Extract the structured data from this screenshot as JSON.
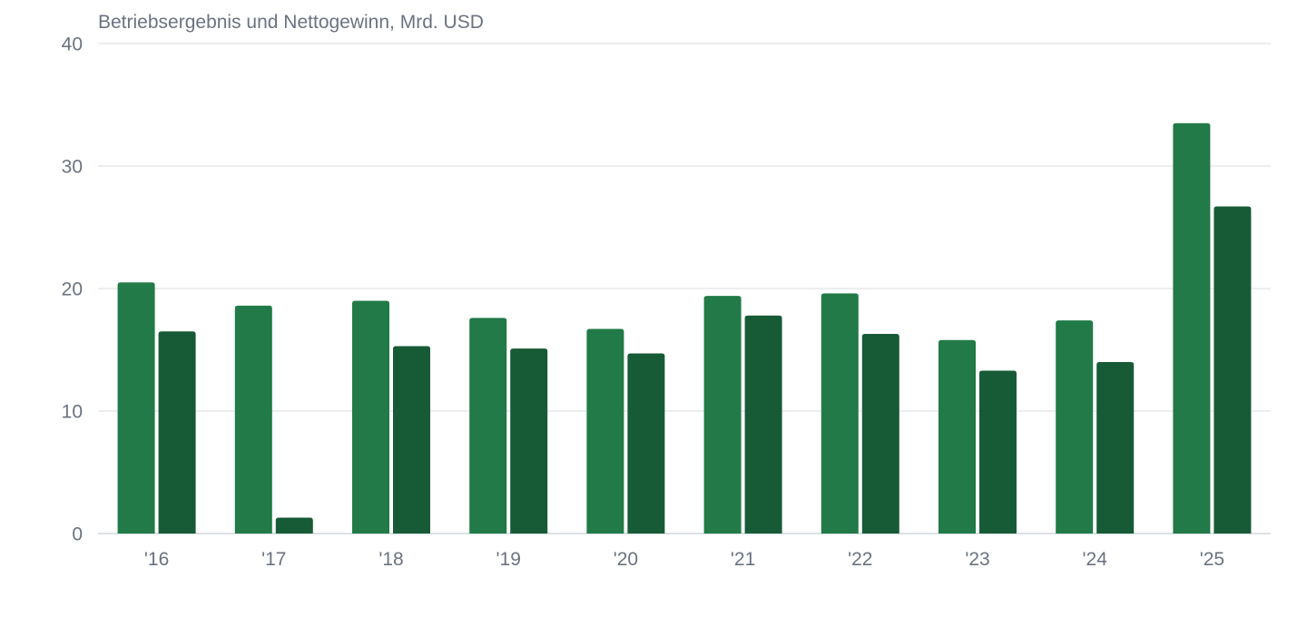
{
  "chart_data": {
    "type": "bar",
    "title": "Betriebsergebnis und Nettogewinn, Mrd. USD",
    "categories": [
      "'16",
      "'17",
      "'18",
      "'19",
      "'20",
      "'21",
      "'22",
      "'23",
      "'24",
      "'25"
    ],
    "series": [
      {
        "values": [
          20.5,
          18.6,
          19.0,
          17.6,
          16.7,
          19.4,
          19.6,
          15.8,
          17.4,
          33.5
        ],
        "color": "#217a47"
      },
      {
        "values": [
          16.5,
          1.3,
          15.3,
          15.1,
          14.7,
          17.8,
          16.3,
          13.3,
          14.0,
          26.7
        ],
        "color": "#175b36"
      }
    ],
    "ylim": [
      0,
      40
    ],
    "yticks": [
      0,
      10,
      20,
      30,
      40
    ],
    "grid": true,
    "legend": "none"
  }
}
